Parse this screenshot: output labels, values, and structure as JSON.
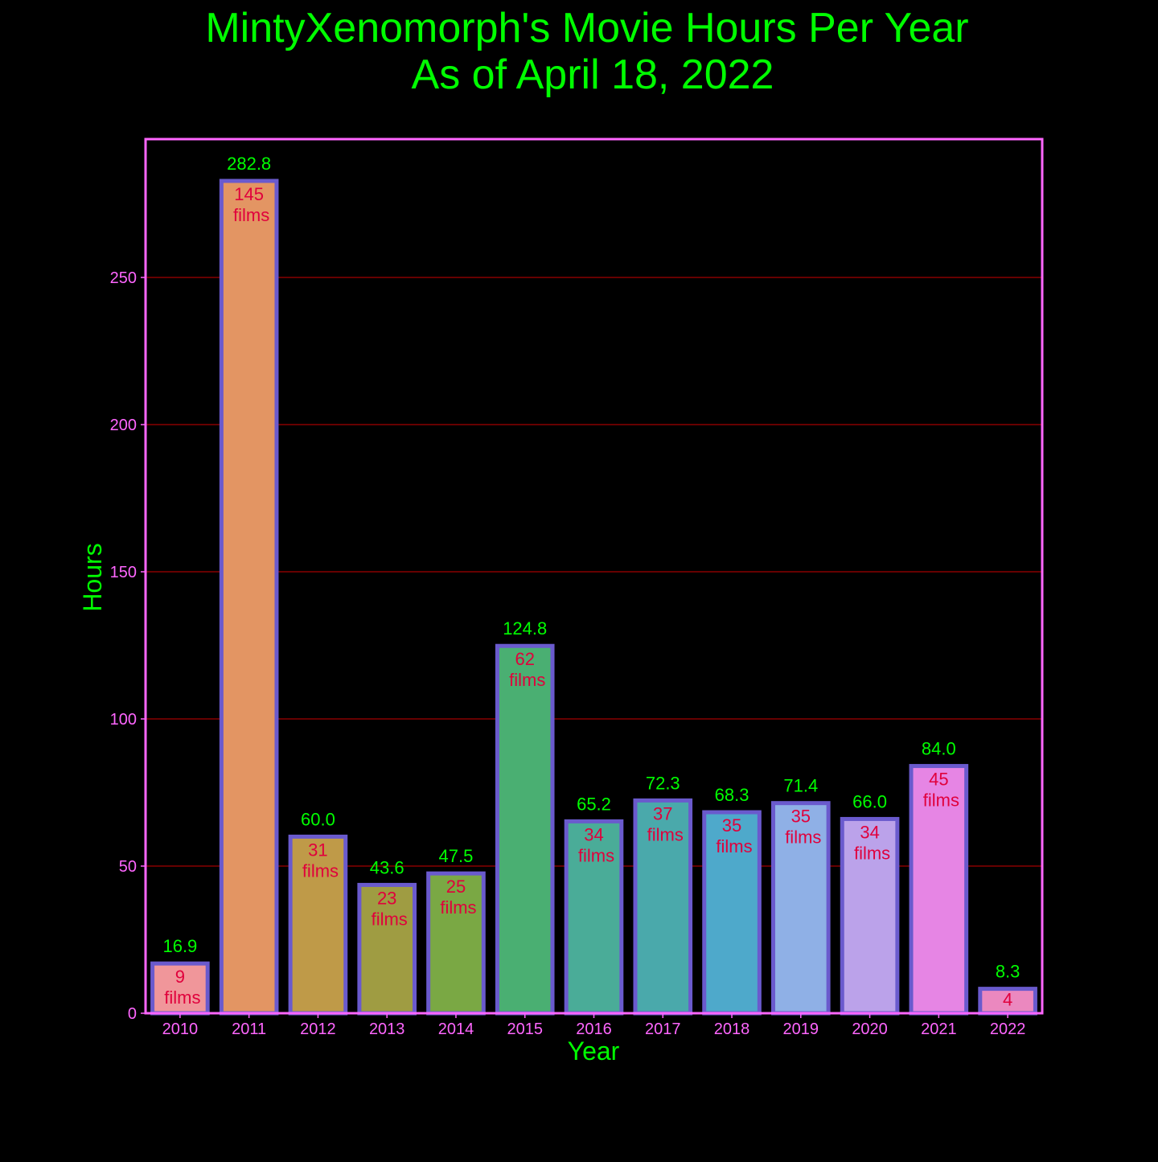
{
  "colors": {
    "background": "#000000",
    "title": "#00ff00",
    "axis_frame": "#ff66ff",
    "tick_label": "#ff66ff",
    "axis_label": "#00ff00",
    "gridline": "#cc0000",
    "bar_edge": "#6a5acd",
    "value_label": "#00ff00",
    "count_label": "#e0003c"
  },
  "chart_data": {
    "type": "bar",
    "title": "MintyXenomorph's Movie Hours Per Year",
    "subtitle": "As of April 18, 2022",
    "xlabel": "Year",
    "ylabel": "Hours",
    "ylim": [
      0,
      297
    ],
    "yticks": [
      0,
      50,
      100,
      150,
      200,
      250
    ],
    "grid": "horizontal",
    "categories": [
      "2010",
      "2011",
      "2012",
      "2013",
      "2014",
      "2015",
      "2016",
      "2017",
      "2018",
      "2019",
      "2020",
      "2021",
      "2022"
    ],
    "values": [
      16.9,
      282.8,
      60.0,
      43.6,
      47.5,
      124.8,
      65.2,
      72.3,
      68.3,
      71.4,
      66.0,
      84.0,
      8.3
    ],
    "value_labels": [
      "16.9",
      "282.8",
      "60.0",
      "43.6",
      "47.5",
      "124.8",
      "65.2",
      "72.3",
      "68.3",
      "71.4",
      "66.0",
      "84.0",
      "8.3"
    ],
    "film_counts": [
      9,
      145,
      31,
      23,
      25,
      62,
      34,
      37,
      35,
      35,
      34,
      45,
      4
    ],
    "film_count_unit": "films",
    "bar_colors": [
      "#f0969a",
      "#e39563",
      "#bf9a48",
      "#9f9c42",
      "#7aa844",
      "#4aaf72",
      "#4aac98",
      "#4aa9ab",
      "#4ea9cb",
      "#8fb0e6",
      "#bba2ea",
      "#e685e4",
      "#eb88bf"
    ]
  }
}
